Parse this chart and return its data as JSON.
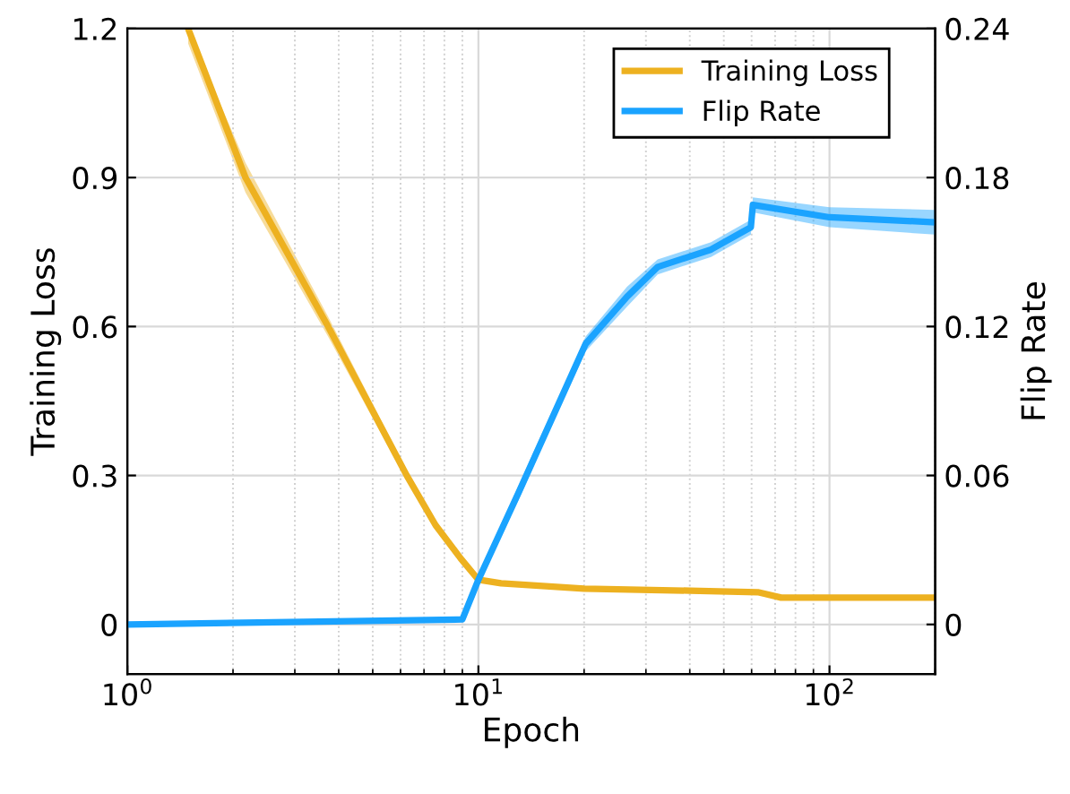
{
  "chart_data": {
    "type": "line",
    "xlabel": "Epoch",
    "ylabel": "Training Loss",
    "y2label": "Flip Rate",
    "log": "x",
    "xlim": [
      1,
      200
    ],
    "xticks": [
      {
        "value": 1,
        "label": "10$^{0}$"
      },
      {
        "value": 10,
        "label": "10$^{1}$"
      },
      {
        "value": 100,
        "label": "10$^{2}$"
      }
    ],
    "ylim": [
      -0.1,
      1.2
    ],
    "yticks": [
      0,
      0.3,
      0.6,
      0.9,
      1.2
    ],
    "y2lim": [
      -0.02,
      0.24
    ],
    "y2ticks": [
      0,
      0.06,
      0.12,
      0.18,
      0.24
    ],
    "grid": true,
    "legend": "top right",
    "line_style": "solid",
    "marker": "none",
    "series": [
      {
        "name": "Training Loss",
        "color": "#edb120",
        "x": [
          1.49,
          2.17,
          3.73,
          6.25,
          7.55,
          8.9,
          10,
          11.6,
          20,
          40,
          62.5,
          72.8,
          100,
          200
        ],
        "values": [
          1.2,
          0.9,
          0.6,
          0.3,
          0.2,
          0.133,
          0.09,
          0.083,
          0.072,
          0.068,
          0.065,
          0.054,
          0.054,
          0.054
        ],
        "lower": [
          1.17,
          0.87,
          0.58,
          0.29,
          0.195,
          0.13,
          0.088,
          0.081,
          0.07,
          0.066,
          0.063,
          0.052,
          0.052,
          0.052
        ],
        "upper": [
          1.2,
          0.93,
          0.62,
          0.31,
          0.205,
          0.136,
          0.092,
          0.085,
          0.074,
          0.07,
          0.067,
          0.056,
          0.056,
          0.056
        ]
      },
      {
        "name": "Flip Rate",
        "color": "#1aa3ff",
        "axis": "y2",
        "x": [
          1,
          9,
          10,
          13.1,
          20.2,
          26.5,
          32.4,
          46,
          59.7,
          60.5,
          100,
          200
        ],
        "values": [
          0,
          0.002,
          0.018,
          0.054,
          0.113,
          0.132,
          0.144,
          0.151,
          0.16,
          0.169,
          0.164,
          0.162
        ],
        "lower": [
          0,
          0.001,
          0.016,
          0.051,
          0.11,
          0.128,
          0.141,
          0.148,
          0.157,
          0.166,
          0.16,
          0.157
        ],
        "upper": [
          0,
          0.003,
          0.02,
          0.057,
          0.116,
          0.136,
          0.147,
          0.154,
          0.163,
          0.172,
          0.168,
          0.167
        ]
      }
    ]
  }
}
